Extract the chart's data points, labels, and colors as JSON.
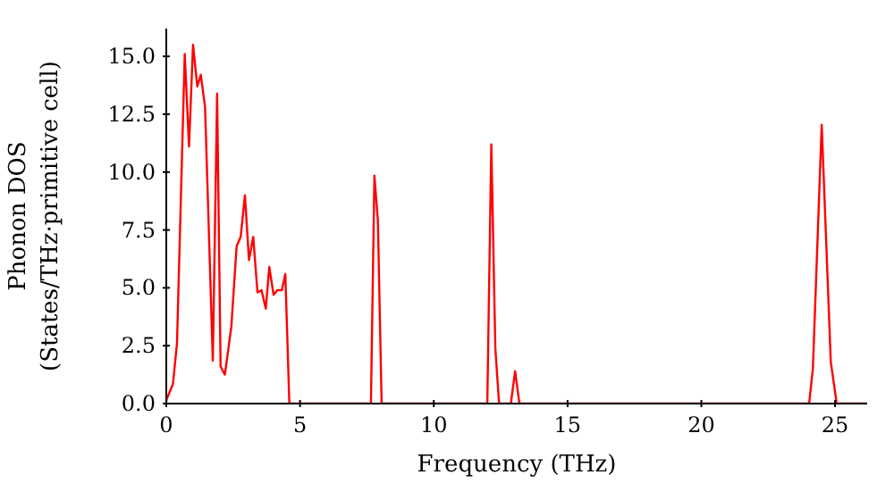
{
  "chart_data": {
    "type": "line",
    "xlabel": "Frequency (THz)",
    "ylabel": "Phonon DOS\n(States/THz·primitive cell)",
    "x": [
      0,
      0.02,
      0.25,
      0.4,
      0.69,
      0.85,
      1.0,
      1.16,
      1.29,
      1.45,
      1.74,
      1.9,
      2.03,
      2.19,
      2.43,
      2.63,
      2.78,
      2.94,
      3.09,
      3.25,
      3.41,
      3.56,
      3.72,
      3.85,
      4.01,
      4.15,
      4.32,
      4.45,
      4.6,
      7.65,
      7.78,
      7.91,
      8.05,
      12.0,
      12.15,
      12.3,
      12.44,
      12.88,
      13.04,
      13.2,
      24.03,
      24.17,
      24.5,
      24.84,
      25.06,
      26.2
    ],
    "series": [
      {
        "color": "#ff0000",
        "values": [
          0.1,
          0.2,
          0.85,
          2.6,
          15.1,
          11.1,
          15.5,
          13.7,
          14.2,
          12.8,
          1.85,
          13.4,
          1.6,
          1.25,
          3.3,
          6.8,
          7.2,
          9.0,
          6.2,
          7.2,
          4.8,
          4.9,
          4.1,
          5.9,
          4.7,
          4.9,
          4.9,
          5.6,
          0,
          0,
          9.85,
          7.9,
          0,
          0,
          11.2,
          2.4,
          0,
          0,
          1.4,
          0,
          0,
          1.5,
          12.05,
          1.8,
          0,
          0
        ]
      }
    ],
    "xlim": [
      0,
      26.2
    ],
    "xticks": [
      0,
      5,
      10,
      15,
      20,
      25
    ],
    "ylim": [
      0,
      16.2
    ],
    "yticks": [
      {
        "value": 0,
        "label": "0.0"
      },
      {
        "value": 2.5,
        "label": "2.5"
      },
      {
        "value": 5,
        "label": "5.0"
      },
      {
        "value": 7.5,
        "label": "7.5"
      },
      {
        "value": 10,
        "label": "10.0"
      },
      {
        "value": 12.5,
        "label": "12.5"
      },
      {
        "value": 15,
        "label": "15.0"
      }
    ]
  }
}
